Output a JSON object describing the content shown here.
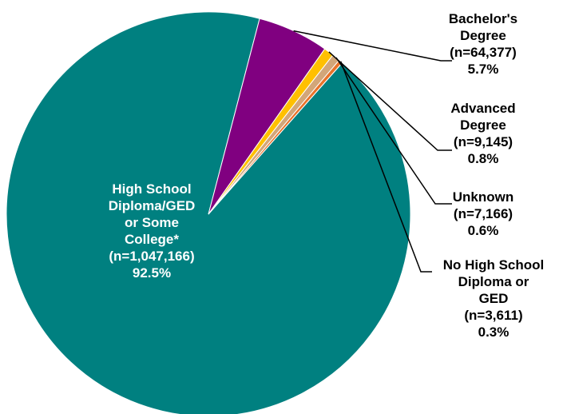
{
  "chart_data": {
    "type": "pie",
    "title": "",
    "slices": [
      {
        "label_lines": [
          "High School",
          "Diploma/GED",
          "or Some",
          "College*"
        ],
        "n_text": "(n=1,047,166)",
        "percent_text": "92.5%",
        "value": 1047166,
        "color": "#008080"
      },
      {
        "label_lines": [
          "Bachelor's",
          "Degree"
        ],
        "n_text": "(n=64,377)",
        "percent_text": "5.7%",
        "value": 64377,
        "color": "#800080"
      },
      {
        "label_lines": [
          "Advanced",
          "Degree"
        ],
        "n_text": "(n=9,145)",
        "percent_text": "0.8%",
        "value": 9145,
        "color": "#FFC000"
      },
      {
        "label_lines": [
          "Unknown"
        ],
        "n_text": "(n=7,166)",
        "percent_text": "0.6%",
        "value": 7166,
        "color": "#D2A679"
      },
      {
        "label_lines": [
          "No High School",
          "Diploma or",
          "GED"
        ],
        "n_text": "(n=3,611)",
        "percent_text": "0.3%",
        "value": 3611,
        "color": "#E8732A"
      }
    ]
  }
}
